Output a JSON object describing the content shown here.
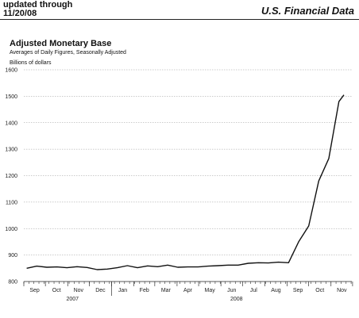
{
  "header": {
    "updated_line1": "updated through",
    "updated_line2": "11/20/08",
    "brand": "U.S. Financial Data"
  },
  "chart_data": {
    "type": "line",
    "title": "Adjusted Monetary Base",
    "subtitle": "Averages of Daily Figures, Seasonally Adjusted",
    "ylabel": "Billions of dollars",
    "ylim": [
      800,
      1600
    ],
    "yticks": [
      800,
      900,
      1000,
      1100,
      1200,
      1300,
      1400,
      1500,
      1600
    ],
    "grid": "horizontal dotted",
    "x_months": [
      "Sep",
      "Oct",
      "Nov",
      "Dec",
      "Jan",
      "Feb",
      "Mar",
      "Apr",
      "May",
      "Jun",
      "Jul",
      "Aug",
      "Sep",
      "Oct",
      "Nov"
    ],
    "x_years": [
      "2007",
      "2008"
    ],
    "x": [
      "2007-09-05",
      "2007-09-19",
      "2007-10-03",
      "2007-10-17",
      "2007-10-31",
      "2007-11-14",
      "2007-11-28",
      "2007-12-12",
      "2007-12-26",
      "2008-01-09",
      "2008-01-23",
      "2008-02-06",
      "2008-02-20",
      "2008-03-05",
      "2008-03-19",
      "2008-04-02",
      "2008-04-16",
      "2008-04-30",
      "2008-05-14",
      "2008-05-28",
      "2008-06-11",
      "2008-06-25",
      "2008-07-09",
      "2008-07-23",
      "2008-08-06",
      "2008-08-20",
      "2008-09-03",
      "2008-09-17",
      "2008-10-01",
      "2008-10-15",
      "2008-10-29",
      "2008-11-12",
      "2008-11-19"
    ],
    "values": [
      850,
      858,
      854,
      855,
      852,
      856,
      853,
      845,
      847,
      852,
      860,
      852,
      859,
      856,
      862,
      854,
      855,
      855,
      858,
      860,
      862,
      862,
      869,
      871,
      870,
      873,
      871,
      950,
      1010,
      1180,
      1265,
      1480,
      1505
    ]
  }
}
